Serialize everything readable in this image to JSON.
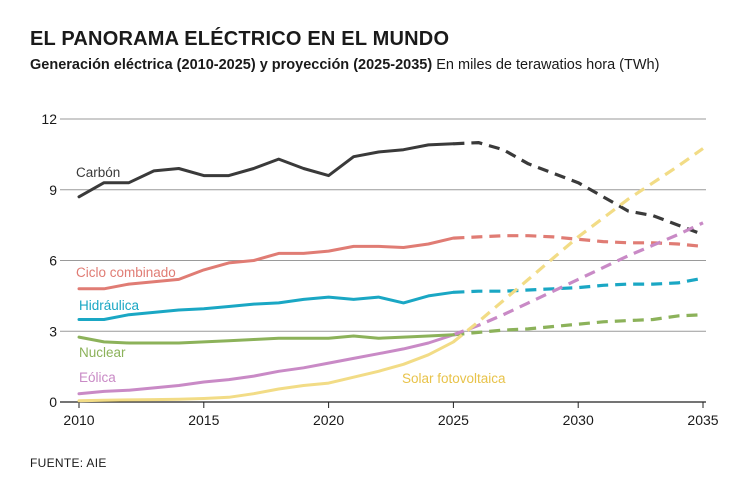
{
  "header": {
    "title": "EL PANORAMA ELÉCTRICO EN EL MUNDO",
    "subtitle_bold": "Generación eléctrica (2010-2025) y proyección (2025-2035)",
    "subtitle_unit": "En miles de terawatios hora (TWh)"
  },
  "footer": {
    "source": "FUENTE: AIE"
  },
  "chart_data": {
    "type": "line",
    "title": "EL PANORAMA ELÉCTRICO EN EL MUNDO",
    "subtitle": "Generación eléctrica (2010-2025) y proyección (2025-2035)",
    "unit": "En miles de terawatios hora (TWh)",
    "xlabel": "",
    "ylabel": "",
    "xlim": [
      2010,
      2035
    ],
    "ylim": [
      0,
      12
    ],
    "xticks": [
      2010,
      2015,
      2020,
      2025,
      2030,
      2035
    ],
    "yticks": [
      0,
      3,
      6,
      9,
      12
    ],
    "grid": "horizontal",
    "historical_range": [
      2010,
      2025
    ],
    "projection_range": [
      2025,
      2035
    ],
    "series": [
      {
        "name": "Carbón",
        "color": "#3a3a3a",
        "historical": [
          [
            2010,
            8.7
          ],
          [
            2011,
            9.3
          ],
          [
            2012,
            9.3
          ],
          [
            2013,
            9.8
          ],
          [
            2014,
            9.9
          ],
          [
            2015,
            9.6
          ],
          [
            2016,
            9.6
          ],
          [
            2017,
            9.9
          ],
          [
            2018,
            10.3
          ],
          [
            2019,
            9.9
          ],
          [
            2020,
            9.6
          ],
          [
            2021,
            10.4
          ],
          [
            2022,
            10.6
          ],
          [
            2023,
            10.7
          ],
          [
            2024,
            10.9
          ],
          [
            2025,
            10.95
          ]
        ],
        "projection": [
          [
            2025,
            10.95
          ],
          [
            2026,
            11.0
          ],
          [
            2027,
            10.7
          ],
          [
            2028,
            10.1
          ],
          [
            2029,
            9.7
          ],
          [
            2030,
            9.3
          ],
          [
            2031,
            8.7
          ],
          [
            2032,
            8.1
          ],
          [
            2033,
            7.9
          ],
          [
            2034,
            7.5
          ],
          [
            2035,
            7.1
          ]
        ]
      },
      {
        "name": "Ciclo combinado",
        "color": "#e07c74",
        "historical": [
          [
            2010,
            4.8
          ],
          [
            2011,
            4.8
          ],
          [
            2012,
            5.0
          ],
          [
            2013,
            5.1
          ],
          [
            2014,
            5.2
          ],
          [
            2015,
            5.6
          ],
          [
            2016,
            5.9
          ],
          [
            2017,
            6.0
          ],
          [
            2018,
            6.3
          ],
          [
            2019,
            6.3
          ],
          [
            2020,
            6.4
          ],
          [
            2021,
            6.6
          ],
          [
            2022,
            6.6
          ],
          [
            2023,
            6.55
          ],
          [
            2024,
            6.7
          ],
          [
            2025,
            6.95
          ]
        ],
        "projection": [
          [
            2025,
            6.95
          ],
          [
            2026,
            7.0
          ],
          [
            2027,
            7.05
          ],
          [
            2028,
            7.05
          ],
          [
            2029,
            7.0
          ],
          [
            2030,
            6.9
          ],
          [
            2031,
            6.8
          ],
          [
            2032,
            6.75
          ],
          [
            2033,
            6.75
          ],
          [
            2034,
            6.7
          ],
          [
            2035,
            6.6
          ]
        ]
      },
      {
        "name": "Hidráulica",
        "color": "#1aa7c4",
        "historical": [
          [
            2010,
            3.5
          ],
          [
            2011,
            3.5
          ],
          [
            2012,
            3.7
          ],
          [
            2013,
            3.8
          ],
          [
            2014,
            3.9
          ],
          [
            2015,
            3.95
          ],
          [
            2016,
            4.05
          ],
          [
            2017,
            4.15
          ],
          [
            2018,
            4.2
          ],
          [
            2019,
            4.35
          ],
          [
            2020,
            4.45
          ],
          [
            2021,
            4.35
          ],
          [
            2022,
            4.45
          ],
          [
            2023,
            4.2
          ],
          [
            2024,
            4.5
          ],
          [
            2025,
            4.65
          ]
        ],
        "projection": [
          [
            2025,
            4.65
          ],
          [
            2026,
            4.7
          ],
          [
            2027,
            4.7
          ],
          [
            2028,
            4.75
          ],
          [
            2029,
            4.8
          ],
          [
            2030,
            4.85
          ],
          [
            2031,
            4.95
          ],
          [
            2032,
            5.0
          ],
          [
            2033,
            5.0
          ],
          [
            2034,
            5.05
          ],
          [
            2035,
            5.25
          ]
        ]
      },
      {
        "name": "Nuclear",
        "color": "#8cb25a",
        "historical": [
          [
            2010,
            2.75
          ],
          [
            2011,
            2.55
          ],
          [
            2012,
            2.5
          ],
          [
            2013,
            2.5
          ],
          [
            2014,
            2.5
          ],
          [
            2015,
            2.55
          ],
          [
            2016,
            2.6
          ],
          [
            2017,
            2.65
          ],
          [
            2018,
            2.7
          ],
          [
            2019,
            2.7
          ],
          [
            2020,
            2.7
          ],
          [
            2021,
            2.8
          ],
          [
            2022,
            2.7
          ],
          [
            2023,
            2.75
          ],
          [
            2024,
            2.8
          ],
          [
            2025,
            2.85
          ]
        ],
        "projection": [
          [
            2025,
            2.85
          ],
          [
            2026,
            2.95
          ],
          [
            2027,
            3.05
          ],
          [
            2028,
            3.1
          ],
          [
            2029,
            3.2
          ],
          [
            2030,
            3.3
          ],
          [
            2031,
            3.4
          ],
          [
            2032,
            3.45
          ],
          [
            2033,
            3.5
          ],
          [
            2034,
            3.65
          ],
          [
            2035,
            3.7
          ]
        ]
      },
      {
        "name": "Eólica",
        "color": "#c98ac6",
        "historical": [
          [
            2010,
            0.35
          ],
          [
            2011,
            0.45
          ],
          [
            2012,
            0.5
          ],
          [
            2013,
            0.6
          ],
          [
            2014,
            0.7
          ],
          [
            2015,
            0.85
          ],
          [
            2016,
            0.95
          ],
          [
            2017,
            1.1
          ],
          [
            2018,
            1.3
          ],
          [
            2019,
            1.45
          ],
          [
            2020,
            1.65
          ],
          [
            2021,
            1.85
          ],
          [
            2022,
            2.05
          ],
          [
            2023,
            2.25
          ],
          [
            2024,
            2.5
          ],
          [
            2025,
            2.85
          ]
        ],
        "projection": [
          [
            2025,
            2.85
          ],
          [
            2026,
            3.25
          ],
          [
            2027,
            3.7
          ],
          [
            2028,
            4.2
          ],
          [
            2029,
            4.7
          ],
          [
            2030,
            5.2
          ],
          [
            2031,
            5.7
          ],
          [
            2032,
            6.2
          ],
          [
            2033,
            6.65
          ],
          [
            2034,
            7.1
          ],
          [
            2035,
            7.6
          ]
        ]
      },
      {
        "name": "Solar fotovoltaica",
        "color": "#f2dc86",
        "historical": [
          [
            2010,
            0.05
          ],
          [
            2011,
            0.07
          ],
          [
            2012,
            0.09
          ],
          [
            2013,
            0.1
          ],
          [
            2014,
            0.12
          ],
          [
            2015,
            0.15
          ],
          [
            2016,
            0.2
          ],
          [
            2017,
            0.35
          ],
          [
            2018,
            0.55
          ],
          [
            2019,
            0.7
          ],
          [
            2020,
            0.8
          ],
          [
            2021,
            1.05
          ],
          [
            2022,
            1.3
          ],
          [
            2023,
            1.6
          ],
          [
            2024,
            2.0
          ],
          [
            2025,
            2.55
          ]
        ],
        "projection": [
          [
            2025,
            2.55
          ],
          [
            2026,
            3.4
          ],
          [
            2027,
            4.3
          ],
          [
            2028,
            5.2
          ],
          [
            2029,
            6.1
          ],
          [
            2030,
            7.0
          ],
          [
            2031,
            7.8
          ],
          [
            2032,
            8.6
          ],
          [
            2033,
            9.3
          ],
          [
            2034,
            10.0
          ],
          [
            2035,
            10.75
          ]
        ]
      }
    ]
  }
}
